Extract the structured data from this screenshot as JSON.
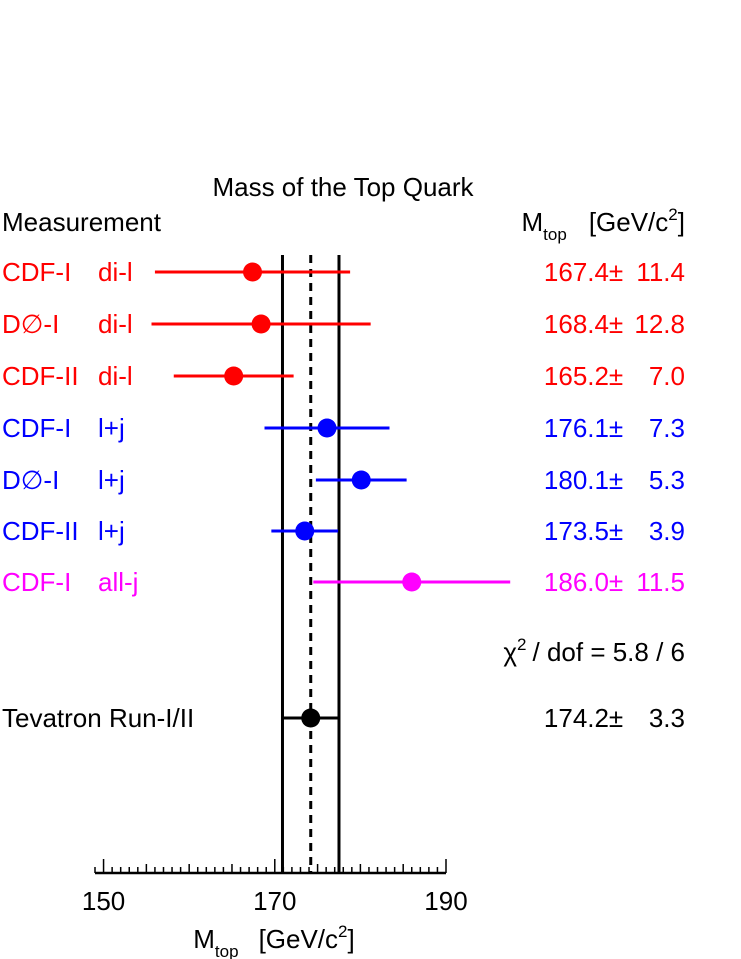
{
  "chart_data": {
    "type": "scatter",
    "title": "Mass of the Top Quark",
    "column_header_left": "Measurement",
    "column_header_right": {
      "symbol": "M",
      "subscript": "top",
      "unit": "[GeV/c",
      "unit_sup": "2",
      "unit_close": "]"
    },
    "xlabel": {
      "symbol": "M",
      "subscript": "top",
      "unit": "[GeV/c",
      "unit_sup": "2",
      "unit_close": "]"
    },
    "xlim": [
      149,
      190
    ],
    "xticks": [
      150,
      170,
      190
    ],
    "tick_labels": [
      "150",
      "170",
      "190"
    ],
    "combined_band": {
      "center": 174.2,
      "low": 170.9,
      "high": 177.5
    },
    "measurements": [
      {
        "experiment": "CDF-I",
        "channel": "di-l",
        "value": 167.4,
        "error": 11.4,
        "value_text": "167.4",
        "pm": "±",
        "error_text": "11.4",
        "color": "#ff0000"
      },
      {
        "experiment": "D∅-I",
        "channel": "di-l",
        "value": 168.4,
        "error": 12.8,
        "value_text": "168.4",
        "pm": "±",
        "error_text": "12.8",
        "color": "#ff0000"
      },
      {
        "experiment": "CDF-II",
        "channel": "di-l",
        "value": 165.2,
        "error": 7.0,
        "value_text": "165.2",
        "pm": "±",
        "error_text": "7.0",
        "color": "#ff0000"
      },
      {
        "experiment": "CDF-I",
        "channel": "l+j",
        "value": 176.1,
        "error": 7.3,
        "value_text": "176.1",
        "pm": "±",
        "error_text": "7.3",
        "color": "#0000ff"
      },
      {
        "experiment": "D∅-I",
        "channel": "l+j",
        "value": 180.1,
        "error": 5.3,
        "value_text": "180.1",
        "pm": "±",
        "error_text": "5.3",
        "color": "#0000ff"
      },
      {
        "experiment": "CDF-II",
        "channel": "l+j",
        "value": 173.5,
        "error": 3.9,
        "value_text": "173.5",
        "pm": "±",
        "error_text": "3.9",
        "color": "#0000ff"
      },
      {
        "experiment": "CDF-I",
        "channel": "all-j",
        "value": 186.0,
        "error": 11.5,
        "value_text": "186.0",
        "pm": "±",
        "error_text": "11.5",
        "color": "#ff00ff"
      }
    ],
    "chi2": {
      "symbol": "χ",
      "sup": "2",
      "text": "/ dof  =  5.8 / 6"
    },
    "combined": {
      "label": "Tevatron Run-I/II",
      "value": 174.2,
      "error": 3.3,
      "value_text": "174.2",
      "pm": "±",
      "error_text": "3.3",
      "color": "#000000"
    }
  }
}
